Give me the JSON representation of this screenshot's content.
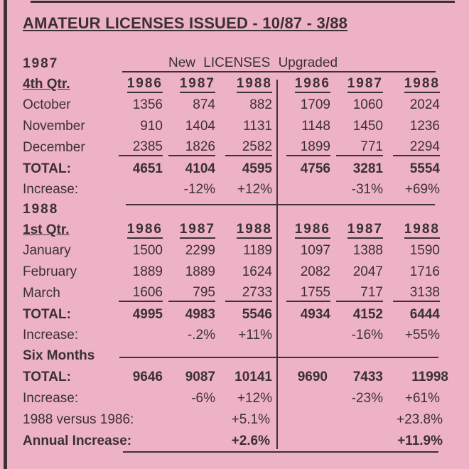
{
  "title": "AMATEUR LICENSES ISSUED - 10/87 - 3/88",
  "header": {
    "new": "New",
    "licenses": "LICENSES",
    "upgraded": "Upgraded"
  },
  "section_q4": {
    "year_label": "1987",
    "quarter_label": "4th Qtr.",
    "years": [
      "1986",
      "1987",
      "1988",
      "1986",
      "1987",
      "1988"
    ],
    "rows": [
      {
        "label": "October",
        "values": [
          "1356",
          "874",
          "882",
          "1709",
          "1060",
          "2024"
        ]
      },
      {
        "label": "November",
        "values": [
          "910",
          "1404",
          "1131",
          "1148",
          "1450",
          "1236"
        ]
      },
      {
        "label": "December",
        "values": [
          "2385",
          "1826",
          "2582",
          "1899",
          "771",
          "2294"
        ]
      },
      {
        "label": "TOTAL:",
        "values": [
          "4651",
          "4104",
          "4595",
          "4756",
          "3281",
          "5554"
        ]
      },
      {
        "label": "Increase:",
        "values": [
          "",
          "-12%",
          "+12%",
          "",
          "-31%",
          "+69%"
        ]
      }
    ]
  },
  "section_q1": {
    "year_label": "1988",
    "quarter_label": "1st Qtr.",
    "years": [
      "1986",
      "1987",
      "1988",
      "1986",
      "1987",
      "1988"
    ],
    "rows": [
      {
        "label": "January",
        "values": [
          "1500",
          "2299",
          "1189",
          "1097",
          "1388",
          "1590"
        ]
      },
      {
        "label": "February",
        "values": [
          "1889",
          "1889",
          "1624",
          "2082",
          "2047",
          "1716"
        ]
      },
      {
        "label": "March",
        "values": [
          "1606",
          "795",
          "2733",
          "1755",
          "717",
          "3138"
        ]
      },
      {
        "label": "TOTAL:",
        "values": [
          "4995",
          "4983",
          "5546",
          "4934",
          "4152",
          "6444"
        ]
      },
      {
        "label": "Increase:",
        "values": [
          "",
          "-.2%",
          "+11%",
          "",
          "-16%",
          "+55%"
        ]
      }
    ]
  },
  "six_months": {
    "label": "Six Months",
    "total": {
      "label": "TOTAL:",
      "values": [
        "9646",
        "9087",
        "10141",
        "9690",
        "7433",
        "11998"
      ]
    },
    "increase": {
      "label": "Increase:",
      "values": [
        "",
        "-6%",
        "+12%",
        "",
        "-23%",
        "+61%"
      ]
    },
    "versus": {
      "label": "1988 versus 1986:",
      "new": "+5.1%",
      "upgraded": "+23.8%"
    },
    "annual": {
      "label": "Annual Increase:",
      "new": "+2.6%",
      "upgraded": "+11.9%"
    }
  },
  "colors": {
    "background": "#eeb2c6",
    "ink": "#3a3035"
  }
}
